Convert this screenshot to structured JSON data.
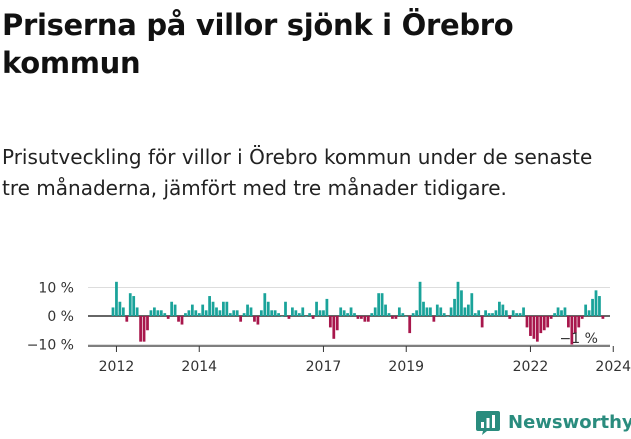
{
  "header": {
    "title": "Priserna på villor sjönk i Örebro kommun",
    "subtitle": "Prisutveckling för villor i Örebro kommun under de senaste tre månaderna, jämfört med tre månader tidigare."
  },
  "brand": {
    "name": "Newsworthy",
    "logo_icon": "bar-chart-icon"
  },
  "colors": {
    "positive": "#1aa39a",
    "negative": "#a8174c",
    "axis": "#333333",
    "grid": "#dddddd",
    "brand": "#2a8c7e"
  },
  "chart_data": {
    "type": "bar",
    "title": "Priserna på villor sjönk i Örebro kommun",
    "xlabel": "",
    "ylabel": "",
    "ylim": [
      -12,
      14
    ],
    "y_ticks": [
      {
        "value": 10,
        "label": "10 %"
      },
      {
        "value": 0,
        "label": "0 %"
      },
      {
        "value": -10,
        "label": "−10 %"
      }
    ],
    "x_ticks": [
      {
        "year": 2012,
        "label": "2012"
      },
      {
        "year": 2014,
        "label": "2014"
      },
      {
        "year": 2017,
        "label": "2017"
      },
      {
        "year": 2019,
        "label": "2019"
      },
      {
        "year": 2022,
        "label": "2022"
      },
      {
        "year": 2024,
        "label": "2024"
      }
    ],
    "start": "2011-12",
    "frequency": "monthly",
    "last_value_label": "−1 %",
    "values": [
      3,
      12,
      5,
      3,
      -2,
      8,
      7,
      3,
      -9,
      -9,
      -5,
      2,
      3,
      2,
      2,
      1,
      -1,
      5,
      4,
      -2,
      -3,
      1,
      2,
      4,
      2,
      1,
      4,
      2,
      7,
      5,
      3,
      2,
      5,
      5,
      1,
      2,
      2,
      -2,
      1,
      4,
      3,
      -2,
      -3,
      2,
      8,
      5,
      2,
      2,
      1,
      0,
      5,
      -1,
      3,
      2,
      1,
      3,
      0,
      1,
      -1,
      5,
      2,
      2,
      6,
      -4,
      -8,
      -5,
      3,
      2,
      1,
      3,
      1,
      -1,
      -1,
      -2,
      -2,
      1,
      3,
      8,
      8,
      4,
      1,
      -1,
      -1,
      3,
      1,
      0,
      -6,
      1,
      2,
      12,
      5,
      3,
      3,
      -2,
      4,
      3,
      1,
      0,
      3,
      6,
      12,
      9,
      3,
      4,
      8,
      1,
      2,
      -4,
      2,
      1,
      1,
      2,
      5,
      4,
      2,
      -1,
      2,
      1,
      1,
      3,
      -4,
      -7,
      -8,
      -9,
      -6,
      -5,
      -4,
      -1,
      1,
      3,
      2,
      3,
      -4,
      -10,
      -6,
      -4,
      -1,
      4,
      2,
      6,
      9,
      7,
      -1
    ]
  }
}
